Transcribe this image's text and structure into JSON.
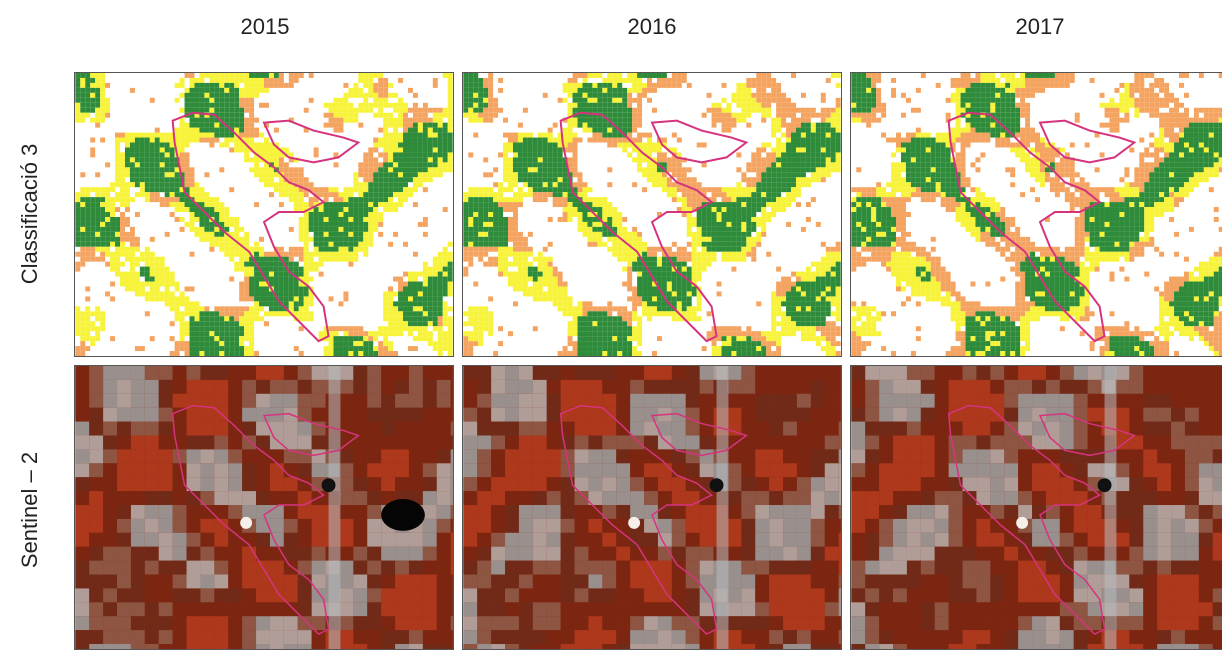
{
  "columns": [
    "2015",
    "2016",
    "2017"
  ],
  "rows": [
    "Classificació 3",
    "Sentinel – 2"
  ],
  "colors": {
    "forest": "#2e8b3a",
    "yellow": "#f7f33b",
    "orange": "#f4a460",
    "boundary": "#d6337f",
    "sat_red": "#8b2a14",
    "sat_grey": "#9a9a9a"
  }
}
